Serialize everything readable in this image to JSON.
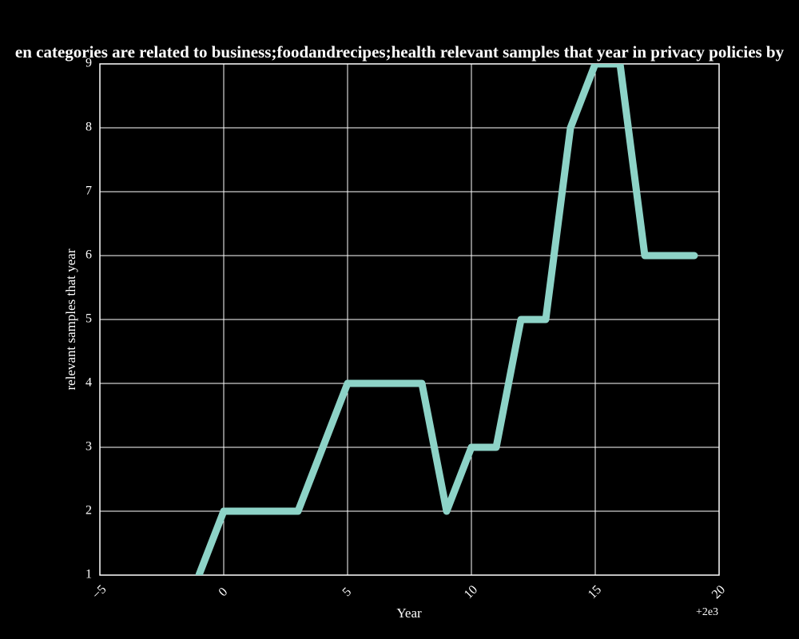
{
  "chart_data": {
    "type": "line",
    "title": "en categories are related to business;foodandrecipes;health relevant samples that year in privacy policies by",
    "x_label": "Year",
    "y_label": "relevant samples that year",
    "x_offset": "+2e3",
    "x": [
      1999,
      2000,
      2001,
      2002,
      2003,
      2004,
      2005,
      2006,
      2007,
      2008,
      2009,
      2010,
      2011,
      2012,
      2013,
      2014,
      2015,
      2016,
      2017,
      2018,
      2019
    ],
    "series": [
      {
        "name": "relevant samples that year",
        "color": "#8dd3c7",
        "values": [
          1,
          2,
          2,
          2,
          2,
          3,
          4,
          4,
          4,
          4,
          2,
          3,
          3,
          5,
          5,
          8,
          9,
          9,
          6,
          6,
          6
        ]
      }
    ],
    "xlim": [
      1995,
      2020
    ],
    "xticks": [
      {
        "value": 1995,
        "label": "−5"
      },
      {
        "value": 2000,
        "label": "0"
      },
      {
        "value": 2005,
        "label": "5"
      },
      {
        "value": 2010,
        "label": "10"
      },
      {
        "value": 2015,
        "label": "15"
      },
      {
        "value": 2020,
        "label": "20"
      }
    ],
    "ylim": [
      1,
      9
    ],
    "yticks": [
      1,
      2,
      3,
      4,
      5,
      6,
      7,
      8,
      9
    ],
    "grid": true
  }
}
